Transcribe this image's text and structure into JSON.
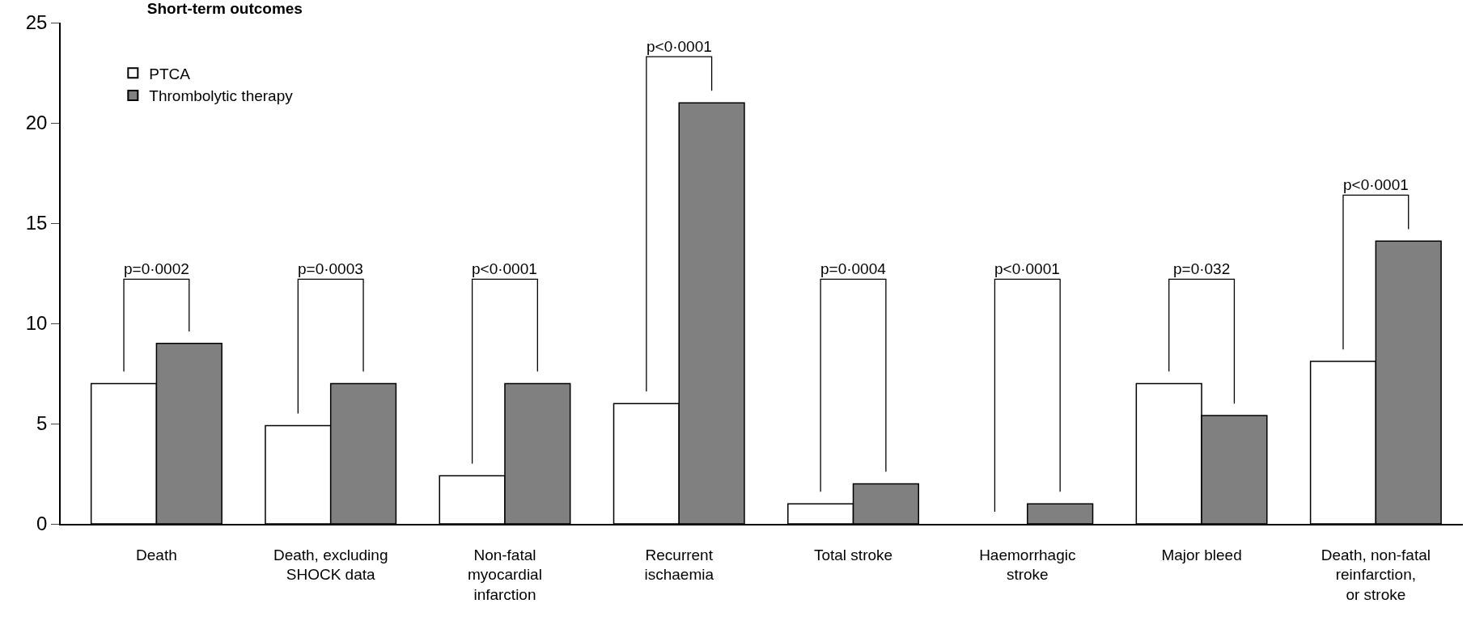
{
  "chart_data": {
    "type": "bar",
    "title": "Short-term outcomes",
    "categories": [
      "Death",
      "Death, excluding\nSHOCK data",
      "Non-fatal\nmyocardial\ninfarction",
      "Recurrent\nischaemia",
      "Total stroke",
      "Haemorrhagic\nstroke",
      "Major bleed",
      "Death, non-fatal\nreinfarction,\nor stroke"
    ],
    "series": [
      {
        "name": "PTCA",
        "color": "#ffffff",
        "values": [
          7,
          4.9,
          2.4,
          6,
          1,
          0,
          7,
          8.1
        ]
      },
      {
        "name": "Thrombolytic therapy",
        "color": "#808080",
        "values": [
          9,
          7,
          7,
          21,
          2,
          1,
          5.4,
          14.1
        ]
      }
    ],
    "ylim": [
      0,
      25
    ],
    "yticks": [
      0,
      5,
      10,
      15,
      20,
      25
    ],
    "legend": "top left",
    "annotations": [
      "p=0·0002",
      "p=0·0003",
      "p<0·0001",
      "p<0·0001",
      "p=0·0004",
      "p<0·0001",
      "p=0·032",
      "p<0·0001"
    ]
  }
}
